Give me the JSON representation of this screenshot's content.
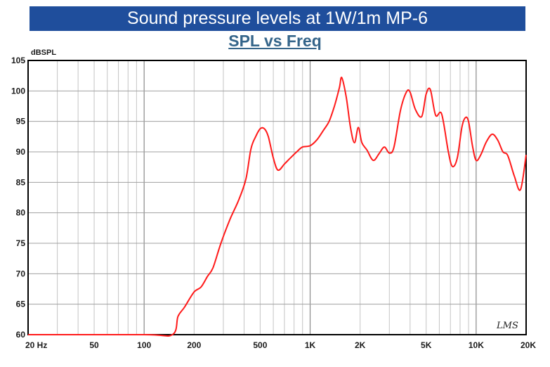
{
  "header": {
    "banner_title": "Sound pressure levels at 1W/1m MP-6",
    "chart_title": "SPL vs Freq"
  },
  "chart_data": {
    "type": "line",
    "title": "SPL vs Freq",
    "ylabel": "dBSPL",
    "xlabel": "",
    "x_scale": "log",
    "xlim": [
      20,
      20000
    ],
    "ylim": [
      60,
      105
    ],
    "grid": true,
    "x_ticks": [
      {
        "value": 20,
        "label": "20  Hz"
      },
      {
        "value": 50,
        "label": "50"
      },
      {
        "value": 100,
        "label": "100"
      },
      {
        "value": 200,
        "label": "200"
      },
      {
        "value": 500,
        "label": "500"
      },
      {
        "value": 1000,
        "label": "1K"
      },
      {
        "value": 2000,
        "label": "2K"
      },
      {
        "value": 5000,
        "label": "5K"
      },
      {
        "value": 10000,
        "label": "10K"
      },
      {
        "value": 20000,
        "label": "20K"
      }
    ],
    "y_ticks": [
      60,
      65,
      70,
      75,
      80,
      85,
      90,
      95,
      100,
      105
    ],
    "watermark": "LMS",
    "series": [
      {
        "color": "#ff1a1a",
        "x": [
          20,
          100,
          148,
          160,
          175,
          200,
          220,
          240,
          260,
          290,
          330,
          370,
          410,
          440,
          470,
          500,
          530,
          560,
          600,
          640,
          700,
          760,
          830,
          900,
          1000,
          1100,
          1200,
          1300,
          1400,
          1500,
          1550,
          1650,
          1750,
          1850,
          1950,
          2050,
          2200,
          2400,
          2600,
          2800,
          3000,
          3200,
          3500,
          3800,
          4000,
          4300,
          4700,
          5000,
          5300,
          5700,
          6200,
          6800,
          7200,
          7700,
          8200,
          8600,
          9000,
          9500,
          10000,
          10700,
          11500,
          12500,
          13500,
          14500,
          15500,
          17000,
          18500,
          20000
        ],
        "y": [
          60,
          60,
          60,
          63,
          64.5,
          67,
          67.8,
          69.5,
          71,
          75,
          79,
          82,
          85.5,
          90.5,
          92.5,
          93.8,
          93.8,
          92.5,
          89,
          87,
          88,
          89,
          90,
          90.8,
          91,
          92,
          93.5,
          95,
          97.5,
          100.5,
          102.2,
          99,
          94,
          91.5,
          94,
          91.5,
          90.3,
          88.6,
          89.7,
          90.8,
          89.8,
          90.8,
          96.8,
          99.8,
          99.8,
          97,
          95.8,
          99.5,
          100.2,
          96,
          96.2,
          90,
          87.6,
          89,
          94,
          95.6,
          95,
          91,
          88.6,
          89.6,
          91.6,
          92.9,
          91.9,
          90,
          89.4,
          86,
          83.8,
          89.5
        ]
      }
    ]
  }
}
